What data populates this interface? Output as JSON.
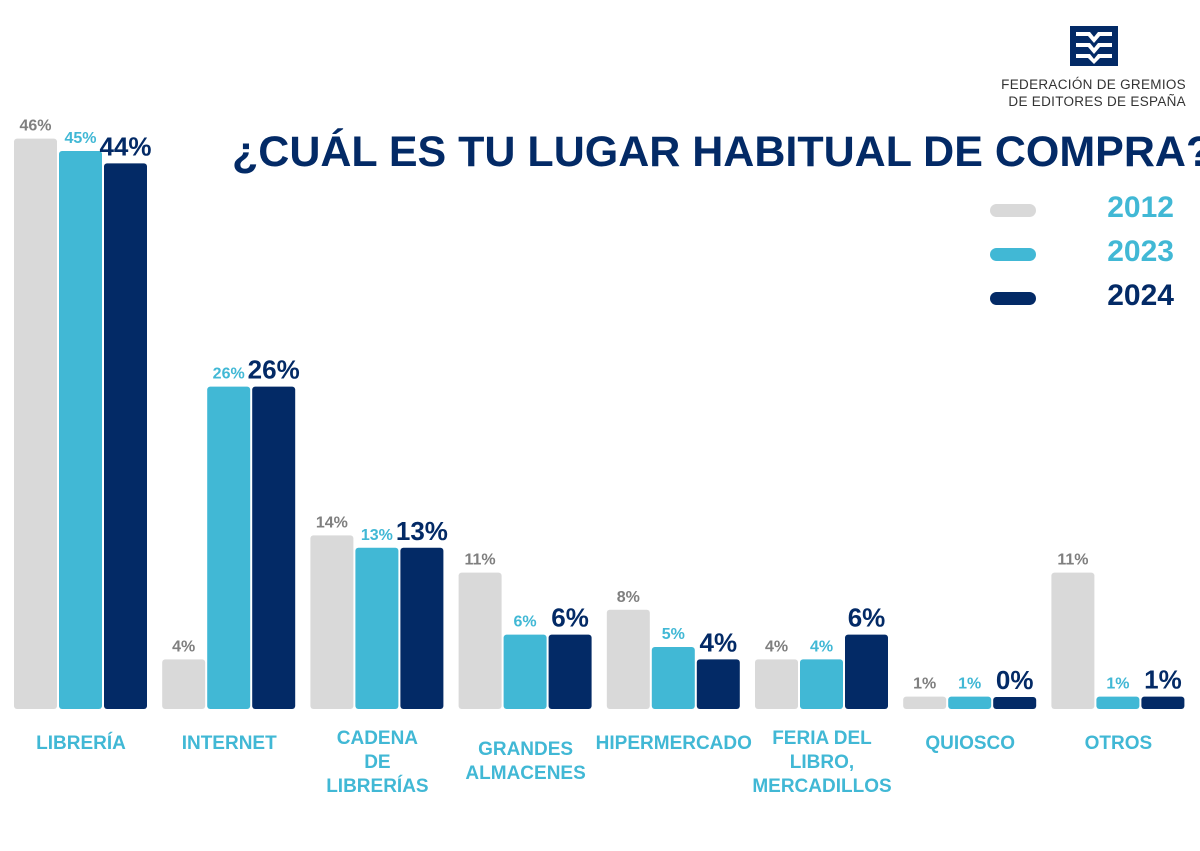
{
  "logo": {
    "line1": "FEDERACIÓN DE GREMIOS",
    "line2": "DE EDITORES DE ESPAÑA"
  },
  "chart_data": {
    "type": "bar",
    "title": "¿CUÁL ES TU LUGAR HABITUAL DE COMPRA?",
    "categories": [
      [
        "LIBRERÍA"
      ],
      [
        "INTERNET"
      ],
      [
        "CADENA",
        "DE",
        "LIBRERÍAS"
      ],
      [
        "GRANDES",
        "ALMACENES"
      ],
      [
        "HIPERMERCADO"
      ],
      [
        "FERIA DEL",
        "LIBRO,",
        "MERCADILLOS"
      ],
      [
        "QUIOSCO"
      ],
      [
        "OTROS"
      ]
    ],
    "series": [
      {
        "name": "2012",
        "color": "#d9d9d9",
        "label_color": "#7f7f7f",
        "values": [
          46,
          4,
          14,
          11,
          8,
          4,
          1,
          11
        ]
      },
      {
        "name": "2023",
        "color": "#41b8d5",
        "label_color": "#41b8d5",
        "values": [
          45,
          26,
          13,
          6,
          5,
          4,
          1,
          1
        ]
      },
      {
        "name": "2024",
        "color": "#032a66",
        "label_color": "#032a66",
        "values": [
          44,
          26,
          13,
          6,
          4,
          6,
          0,
          1
        ]
      }
    ],
    "value_suffix": "%",
    "category_label_color": "#41b8d5",
    "ylim": [
      0,
      46
    ],
    "legend_position": "right",
    "grid": false
  }
}
